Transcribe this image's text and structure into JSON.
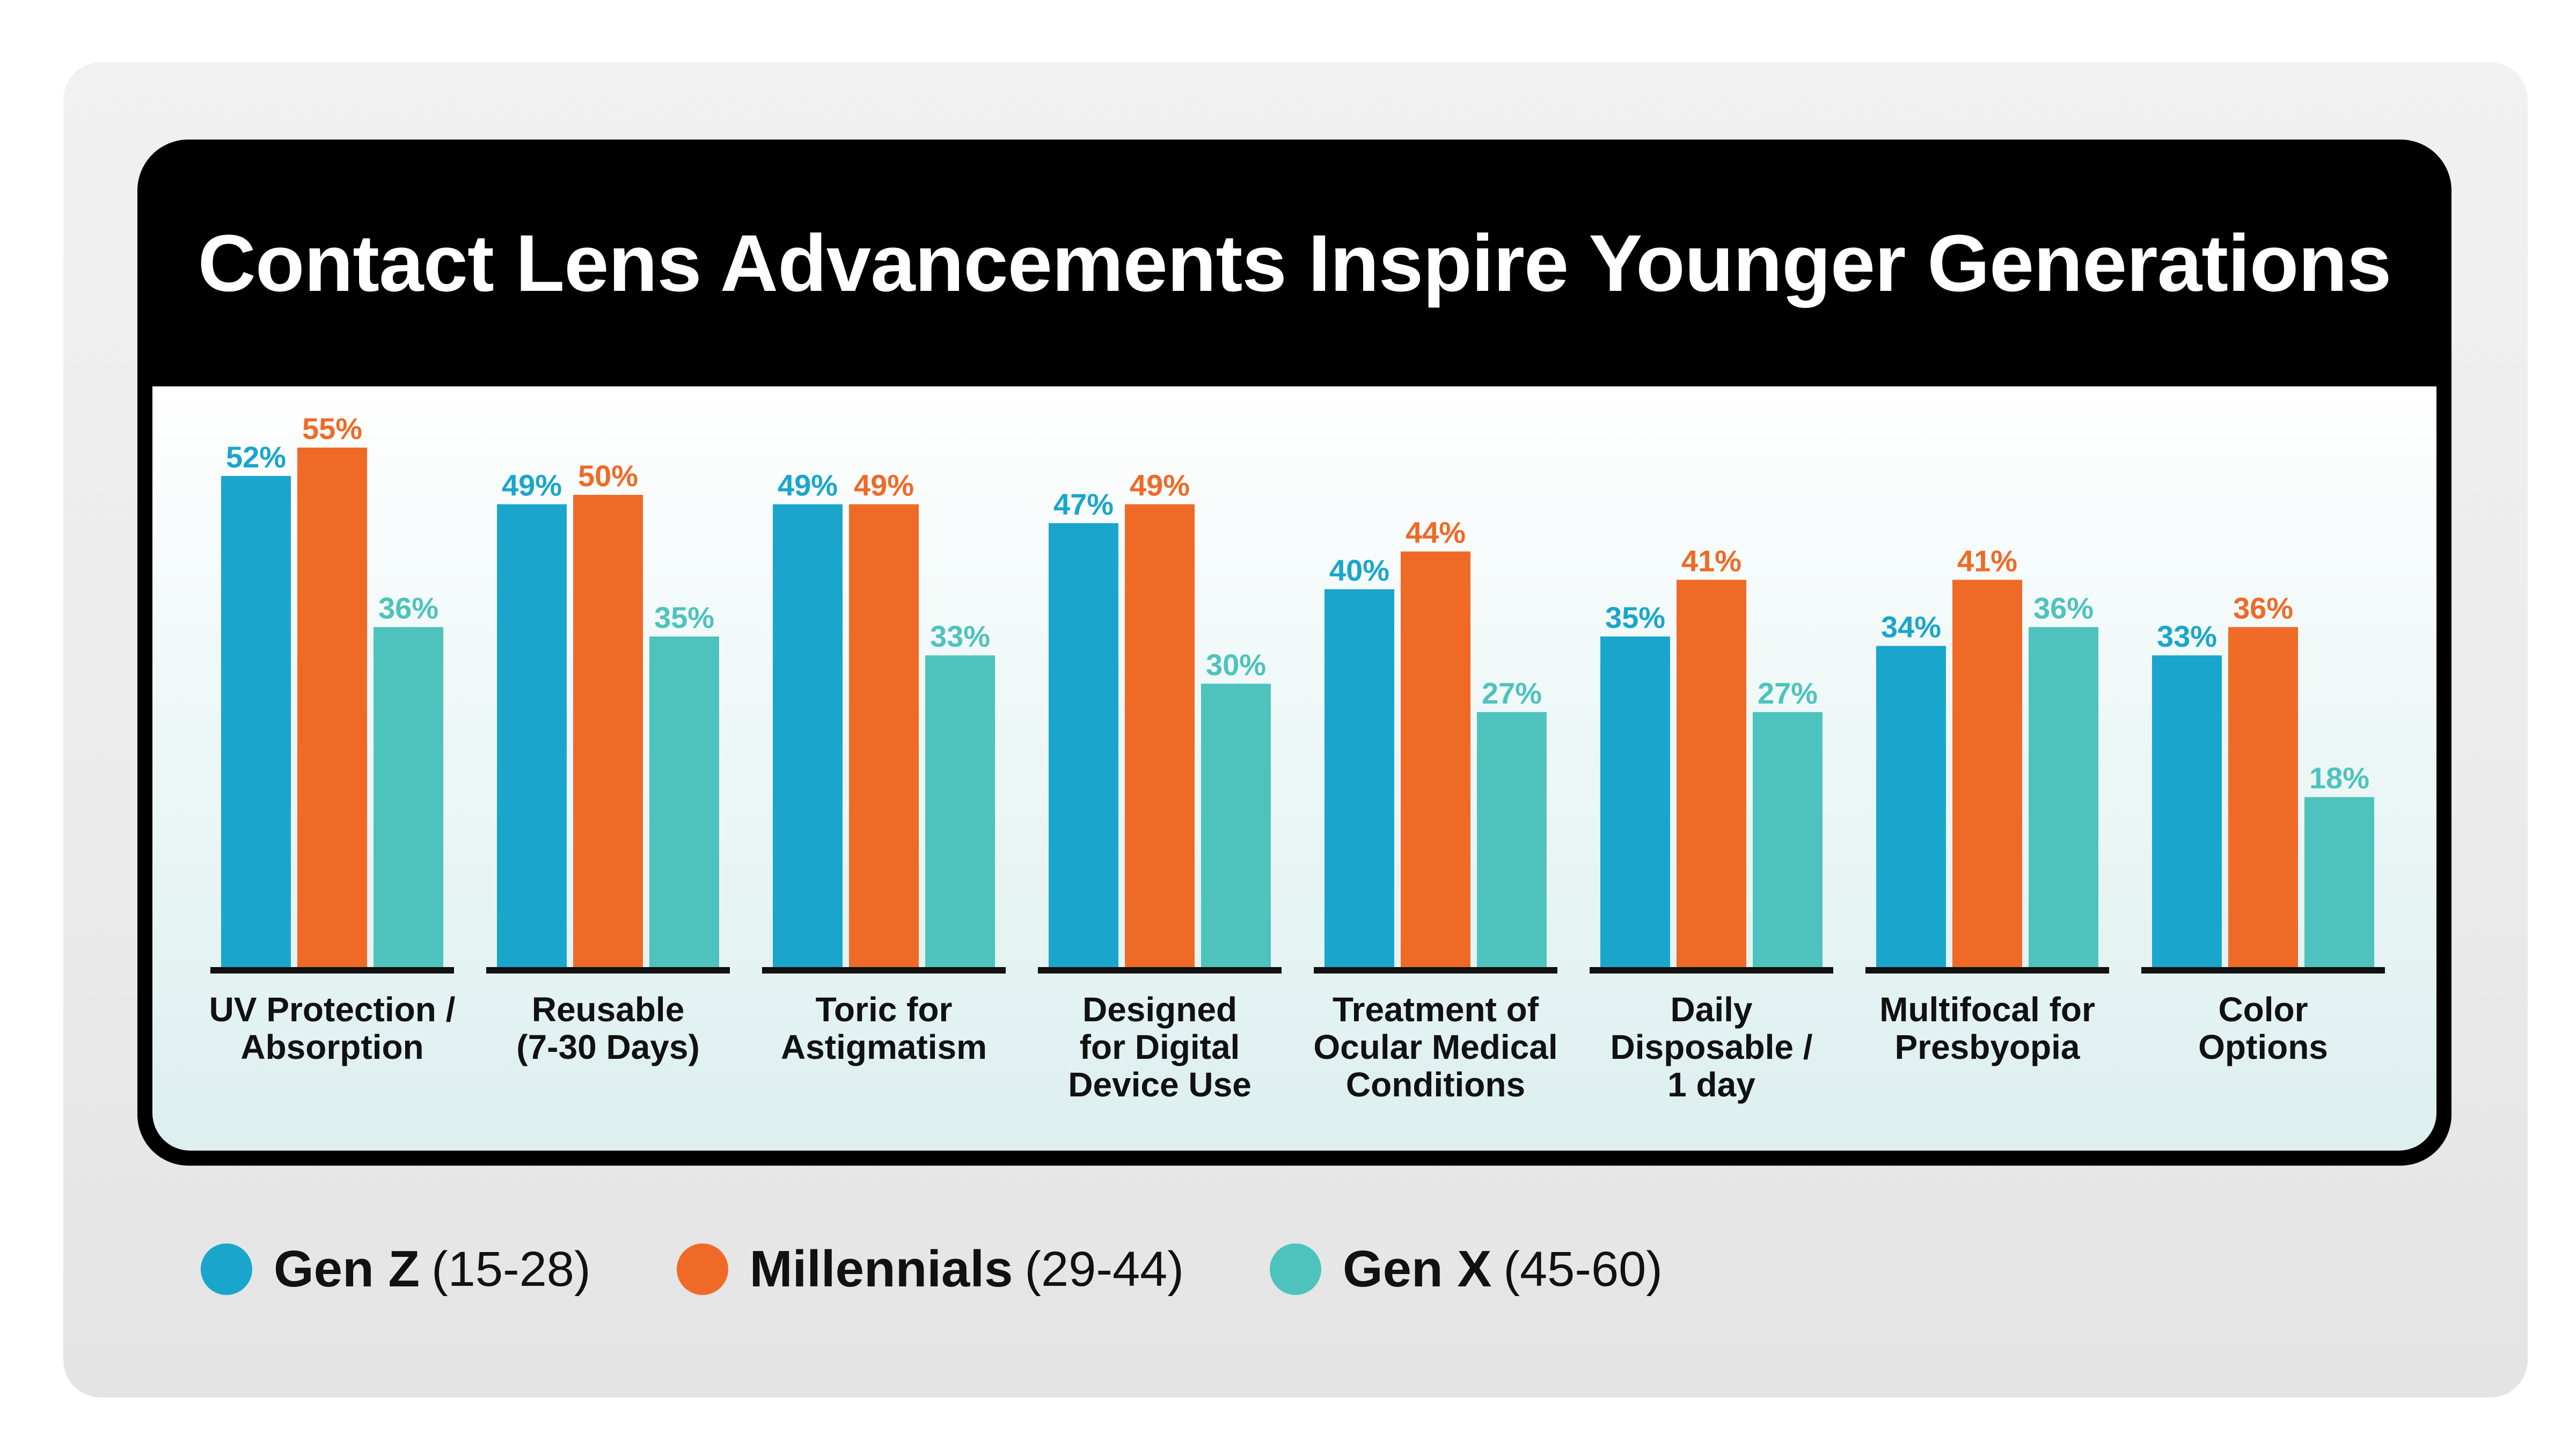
{
  "colors": {
    "gen_z": "#1aa6cc",
    "millennials": "#f06a27",
    "gen_x": "#4ec3bd"
  },
  "chart_data": {
    "type": "bar",
    "title": "Contact Lens Advancements Inspire Younger Generations",
    "categories": [
      "UV Protection /\nAbsorption",
      "Reusable\n(7-30 Days)",
      "Toric for\nAstigmatism",
      "Designed\nfor Digital\nDevice Use",
      "Treatment of\nOcular Medical\nConditions",
      "Daily\nDisposable /\n1 day",
      "Multifocal for\nPresbyopia",
      "Color\nOptions"
    ],
    "series": [
      {
        "name": "Gen Z",
        "range": "(15-28)",
        "values": [
          52,
          49,
          49,
          47,
          40,
          35,
          34,
          33
        ]
      },
      {
        "name": "Millennials",
        "range": "(29-44)",
        "values": [
          55,
          50,
          49,
          49,
          44,
          41,
          41,
          36
        ]
      },
      {
        "name": "Gen X",
        "range": "(45-60)",
        "values": [
          36,
          35,
          33,
          30,
          27,
          27,
          36,
          18
        ]
      }
    ],
    "value_suffix": "%",
    "ylim": [
      0,
      60
    ],
    "grid": false,
    "legend_position": "bottom-left"
  }
}
